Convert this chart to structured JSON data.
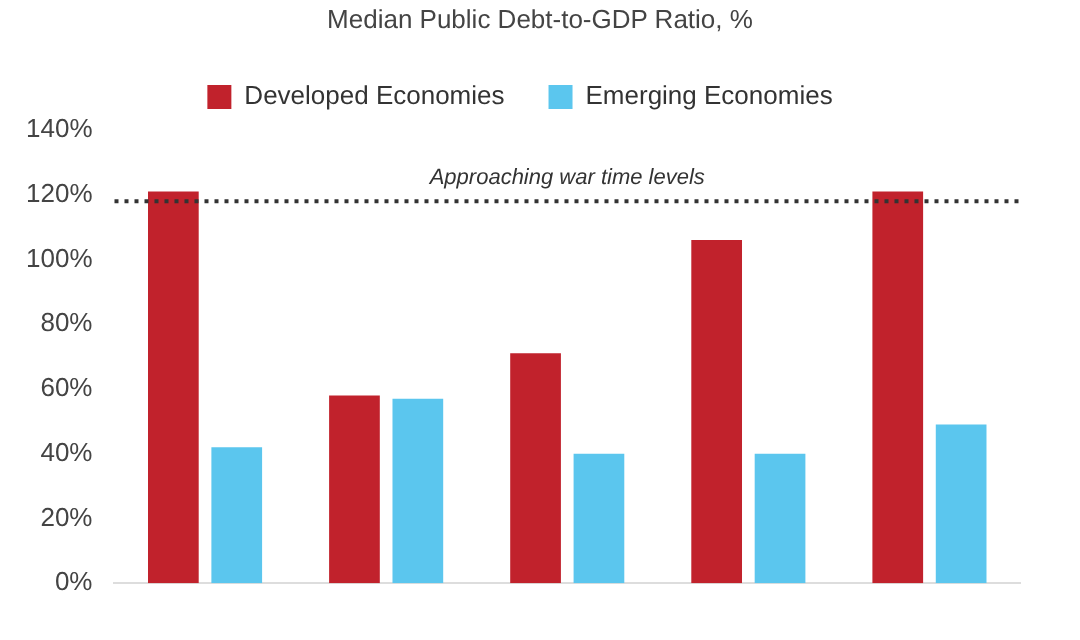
{
  "chart_data": {
    "type": "bar",
    "title": "Median Public Debt-to-GDP Ratio, %",
    "categories": [
      null,
      null,
      null,
      null,
      null
    ],
    "series": [
      {
        "name": "Developed Economies",
        "color": "#c1222c",
        "values": [
          121,
          58,
          71,
          106,
          121
        ]
      },
      {
        "name": "Emerging Economies",
        "color": "#5bc6ee",
        "values": [
          42,
          57,
          40,
          40,
          49
        ]
      }
    ],
    "ylim": [
      0,
      140
    ],
    "yticks": [
      {
        "value": 0,
        "label": "0%"
      },
      {
        "value": 20,
        "label": "20%"
      },
      {
        "value": 40,
        "label": "40%"
      },
      {
        "value": 60,
        "label": "60%"
      },
      {
        "value": 80,
        "label": "80%"
      },
      {
        "value": 100,
        "label": "100%"
      },
      {
        "value": 120,
        "label": "120%"
      },
      {
        "value": 140,
        "label": "140%"
      }
    ],
    "ref_lines": [
      {
        "axis": "y",
        "value": 118,
        "label": "Approaching war time levels",
        "color": "#333333",
        "line_style": "dotted"
      }
    ],
    "grid": false,
    "legend": "top"
  }
}
